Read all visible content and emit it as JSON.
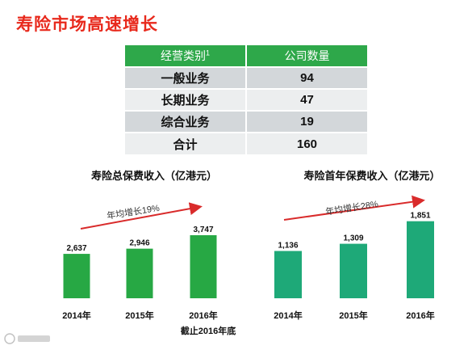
{
  "page_title": "寿险市场高速增长",
  "table": {
    "headers": [
      "经营类别",
      "公司数量"
    ],
    "header_sup": "1",
    "rows": [
      [
        "一般业务",
        "94"
      ],
      [
        "长期业务",
        "47"
      ],
      [
        "综合业务",
        "19"
      ],
      [
        "合计",
        "160"
      ]
    ]
  },
  "colors": {
    "title_red": "#e8291c",
    "header_green": "#2ea84a",
    "bar_green_left": "#27a844",
    "bar_green_right": "#1ea978",
    "arrow_red": "#d92b2b"
  },
  "footnote": "截止2016年底",
  "chart_data": [
    {
      "type": "bar",
      "title": "寿险总保费收入（亿港元）",
      "categories": [
        "2014年",
        "2015年",
        "2016年"
      ],
      "values": [
        2637,
        2946,
        3747
      ],
      "value_labels": [
        "2,637",
        "2,946",
        "3,747"
      ],
      "annotation": "年均增长19%",
      "color": "#27a844"
    },
    {
      "type": "bar",
      "title": "寿险首年保费收入（亿港元）",
      "categories": [
        "2014年",
        "2015年",
        "2016年"
      ],
      "values": [
        1136,
        1309,
        1851
      ],
      "value_labels": [
        "1,136",
        "1,309",
        "1,851"
      ],
      "annotation": "年均增长28%",
      "color": "#1ea978"
    }
  ]
}
